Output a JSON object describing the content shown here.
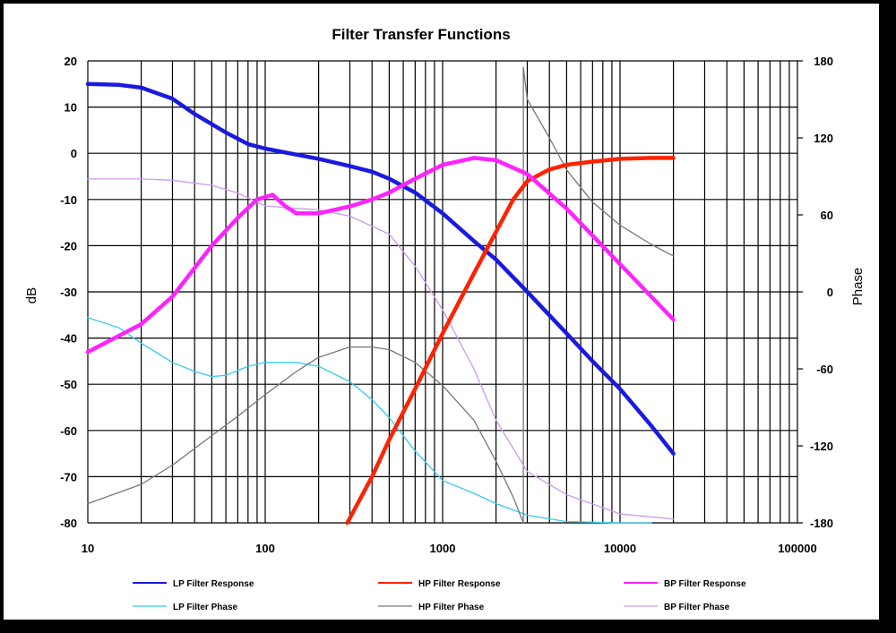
{
  "chart_data": {
    "type": "line",
    "title": "Filter Transfer  Functions",
    "xlabel": "",
    "ylabel": "dB",
    "y2label": "Phase",
    "xscale": "log",
    "xlim": [
      10,
      100000
    ],
    "ylim": [
      -80,
      20
    ],
    "y2lim": [
      -180,
      180
    ],
    "grid": true,
    "legend_position": "bottom",
    "xticks": [
      "10",
      "100",
      "1000",
      "10000",
      "100000"
    ],
    "yticks": [
      "20",
      "10",
      "0",
      "-10",
      "-20",
      "-30",
      "-40",
      "-50",
      "-60",
      "-70",
      "-80"
    ],
    "y2ticks": [
      "180",
      "120",
      "60",
      "0",
      "-60",
      "-120",
      "-180"
    ],
    "series": [
      {
        "name": "LP Filter Response",
        "axis": "left",
        "color": "#1a1adf",
        "width": 4.5,
        "x": [
          10,
          15,
          20,
          30,
          40,
          60,
          80,
          100,
          150,
          200,
          300,
          400,
          500,
          700,
          1000,
          1500,
          2000,
          3000,
          5000,
          7000,
          10000,
          15000,
          20000
        ],
        "y": [
          15,
          14.8,
          14.2,
          11.8,
          8.5,
          4.5,
          2,
          1,
          -0.3,
          -1.2,
          -2.8,
          -4,
          -5.5,
          -8.5,
          -13,
          -19,
          -23,
          -30,
          -39,
          -45,
          -51,
          -59,
          -65
        ]
      },
      {
        "name": "HP Filter Response",
        "axis": "left",
        "color": "#ff2200",
        "width": 4.5,
        "x": [
          290,
          400,
          500,
          700,
          1000,
          1500,
          2000,
          2500,
          3000,
          4000,
          5000,
          7000,
          10000,
          15000,
          20000
        ],
        "y": [
          -80,
          -70,
          -62,
          -51,
          -39,
          -26,
          -17,
          -10,
          -6,
          -3.5,
          -2.5,
          -1.8,
          -1.2,
          -1,
          -1
        ]
      },
      {
        "name": "BP Filter Response",
        "axis": "left",
        "color": "#ff22ff",
        "width": 4.5,
        "x": [
          10,
          20,
          30,
          50,
          70,
          90,
          110,
          130,
          150,
          200,
          300,
          400,
          500,
          700,
          1000,
          1500,
          2000,
          3000,
          5000,
          10000,
          20000
        ],
        "y": [
          -43,
          -37,
          -31,
          -20,
          -14,
          -10,
          -9,
          -11.5,
          -13,
          -13,
          -11.5,
          -10,
          -8.5,
          -5.5,
          -2.5,
          -1,
          -1.5,
          -4.5,
          -12,
          -24,
          -36
        ]
      },
      {
        "name": "LP Filter Phase",
        "axis": "right",
        "color": "#33ccee",
        "width": 1.3,
        "x": [
          10,
          15,
          20,
          30,
          40,
          50,
          60,
          80,
          100,
          150,
          200,
          300,
          400,
          500,
          700,
          1000,
          1500,
          2000,
          3000,
          5000,
          10000,
          15000
        ],
        "y": [
          -20,
          -28,
          -40,
          -55,
          -62,
          -66,
          -65,
          -58,
          -55,
          -55,
          -58,
          -70,
          -84,
          -98,
          -124,
          -147,
          -157,
          -165,
          -174,
          -179,
          -180,
          -180
        ]
      },
      {
        "name": "HP Filter Phase",
        "axis": "right",
        "color": "#777777",
        "width": 1.3,
        "x": [
          10,
          20,
          30,
          50,
          70,
          100,
          150,
          200,
          300,
          400,
          500,
          700,
          1000,
          1500,
          2000,
          2500,
          2850,
          2851,
          3000,
          4000,
          5000,
          7000,
          10000,
          15000,
          20000
        ],
        "y": [
          -165,
          -150,
          -135,
          -112,
          -97,
          -80,
          -62,
          -51,
          -43,
          -43,
          -45,
          -55,
          -73,
          -100,
          -132,
          -160,
          -180,
          175,
          150,
          120,
          95,
          70,
          52,
          37,
          28
        ]
      },
      {
        "name": "BP Filter Phase",
        "axis": "right",
        "color": "#cc99ee",
        "width": 1.3,
        "x": [
          10,
          20,
          30,
          50,
          70,
          100,
          150,
          200,
          300,
          500,
          700,
          1000,
          1500,
          2000,
          3000,
          5000,
          10000,
          20000
        ],
        "y": [
          88,
          88,
          87,
          83,
          77,
          67,
          65,
          64,
          59,
          45,
          20,
          -14,
          -60,
          -100,
          -140,
          -158,
          -173,
          -177
        ]
      }
    ]
  }
}
